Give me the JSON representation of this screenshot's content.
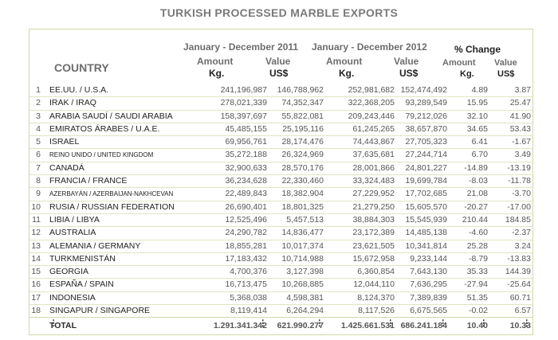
{
  "title": "TURKISH PROCESSED MARBLE EXPORTS",
  "header": {
    "country": "COUNTRY",
    "period_2011": "January - December 2011",
    "period_2012": "January - December 2012",
    "pct_change": "% Change",
    "amount": "Amount",
    "value": "Value",
    "kg": "Kg.",
    "usd": "US$"
  },
  "rows": [
    {
      "n": "1",
      "country": "EE.UU. / U.S.A.",
      "a2011": "241,196,987",
      "v2011": "146,788,962",
      "a2012": "252,981,682",
      "v2012": "152,474,492",
      "pa": "4.89",
      "pv": "3.87"
    },
    {
      "n": "2",
      "country": "IRAK / IRAQ",
      "a2011": "278,021,339",
      "v2011": "74,352,347",
      "a2012": "322,368,205",
      "v2012": "93,289,549",
      "pa": "15.95",
      "pv": "25.47"
    },
    {
      "n": "3",
      "country": "ARABIA SAUDÍ / SAUDI ARABIA",
      "a2011": "158,397,697",
      "v2011": "55,822,081",
      "a2012": "209,243,446",
      "v2012": "79,212,026",
      "pa": "32.10",
      "pv": "41.90"
    },
    {
      "n": "4",
      "country": "EMIRATOS ÁRABES / U.A.E.",
      "a2011": "45,485,155",
      "v2011": "25,195,116",
      "a2012": "61,245,265",
      "v2012": "38,657,870",
      "pa": "34.65",
      "pv": "53.43"
    },
    {
      "n": "5",
      "country": "ISRAEL",
      "a2011": "69,956,761",
      "v2011": "28,174,476",
      "a2012": "74,443,867",
      "v2012": "27,705,323",
      "pa": "6.41",
      "pv": "-1.67"
    },
    {
      "n": "6",
      "country": "REINO UNIDO / UNITED KINGDOM",
      "small": true,
      "a2011": "35,272,188",
      "v2011": "26,324,969",
      "a2012": "37,635,681",
      "v2012": "27,244,714",
      "pa": "6.70",
      "pv": "3.49"
    },
    {
      "n": "7",
      "country": "CANADÁ",
      "a2011": "32,900,633",
      "v2011": "28,570,176",
      "a2012": "28,001,866",
      "v2012": "24,801,227",
      "pa": "-14.89",
      "pv": "-13.19"
    },
    {
      "n": "8",
      "country": "FRANCIA / FRANCE",
      "a2011": "36,234,628",
      "v2011": "22,330,460",
      "a2012": "33,324,483",
      "v2012": "19,699,784",
      "pa": "-8.03",
      "pv": "-11.78"
    },
    {
      "n": "9",
      "country": "AZERBAYÁN / AZERBAIJAN-NAKHCEVAN",
      "small": true,
      "a2011": "22,489,843",
      "v2011": "18,382,904",
      "a2012": "27,229,952",
      "v2012": "17,702,685",
      "pa": "21.08",
      "pv": "-3.70"
    },
    {
      "n": "10",
      "country": "RUSIA / RUSSIAN FEDERATION",
      "a2011": "26,690,401",
      "v2011": "18,801,325",
      "a2012": "21,279,250",
      "v2012": "15,605,570",
      "pa": "-20.27",
      "pv": "-17.00"
    },
    {
      "n": "11",
      "country": "LIBIA / LIBYA",
      "a2011": "12,525,496",
      "v2011": "5,457,513",
      "a2012": "38,884,303",
      "v2012": "15,545,939",
      "pa": "210.44",
      "pv": "184.85"
    },
    {
      "n": "12",
      "country": "AUSTRALIA",
      "a2011": "24,290,782",
      "v2011": "14,836,477",
      "a2012": "23,172,389",
      "v2012": "14,485,138",
      "pa": "-4.60",
      "pv": "-2.37"
    },
    {
      "n": "13",
      "country": "ALEMANIA / GERMANY",
      "a2011": "18,855,281",
      "v2011": "10,017,374",
      "a2012": "23,621,505",
      "v2012": "10,341,814",
      "pa": "25.28",
      "pv": "3.24"
    },
    {
      "n": "14",
      "country": "TURKMENISTÁN",
      "a2011": "17,183,432",
      "v2011": "10,714,988",
      "a2012": "15,672,958",
      "v2012": "9,233,144",
      "pa": "-8.79",
      "pv": "-13.83"
    },
    {
      "n": "15",
      "country": "GEORGIA",
      "a2011": "4,700,376",
      "v2011": "3,127,398",
      "a2012": "6,360,854",
      "v2012": "7,643,130",
      "pa": "35.33",
      "pv": "144.39"
    },
    {
      "n": "16",
      "country": "ESPAÑA / SPAIN",
      "a2011": "16,713,475",
      "v2011": "10,268,885",
      "a2012": "12,044,110",
      "v2012": "7,636,295",
      "pa": "-27.94",
      "pv": "-25.64"
    },
    {
      "n": "17",
      "country": "INDONESIA",
      "a2011": "5,368,038",
      "v2011": "4,598,381",
      "a2012": "8,124,370",
      "v2012": "7,389,839",
      "pa": "51.35",
      "pv": "60.71"
    },
    {
      "n": "18",
      "country": "SINGAPUR / SINGAPORE",
      "a2011": "8,119,414",
      "v2011": "6,264,294",
      "a2012": "8,117,526",
      "v2012": "6,675,565",
      "pa": "-0.02",
      "pv": "6.57"
    }
  ],
  "ellipsis": "⋮",
  "total": {
    "label": "TOTAL",
    "a2011": "1.291.341.342",
    "v2011": "621.990.277",
    "a2012": "1.425.661.531",
    "v2012": "686.241.184",
    "pa": "10.40",
    "pv": "10.33"
  }
}
